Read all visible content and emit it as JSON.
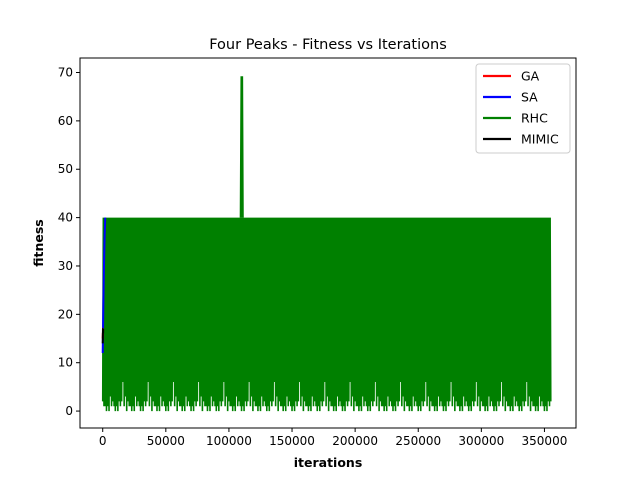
{
  "chart_data": {
    "type": "line",
    "title": "Four Peaks - Fitness vs Iterations",
    "xlabel": "iterations",
    "ylabel": "fitness",
    "xlim": [
      -18000,
      375000
    ],
    "ylim": [
      -3.5,
      73
    ],
    "xticks": [
      0,
      50000,
      100000,
      150000,
      200000,
      250000,
      300000,
      350000
    ],
    "yticks": [
      0,
      10,
      20,
      30,
      40,
      50,
      60,
      70
    ],
    "grid": false,
    "legend_position": "upper right",
    "series": [
      {
        "name": "GA",
        "color": "#ff0000",
        "x": [
          0,
          100,
          200,
          300,
          400,
          500
        ],
        "y": [
          15,
          16,
          16,
          17,
          17,
          17
        ]
      },
      {
        "name": "SA",
        "color": "#0000ff",
        "x": [
          0,
          500,
          1000,
          1500,
          2000
        ],
        "y": [
          12,
          22,
          30,
          36,
          40
        ]
      },
      {
        "name": "RHC",
        "color": "#008000",
        "x_start": 0,
        "x_end": 355000,
        "x_step": 500,
        "min": 0,
        "max": 40,
        "peak": {
          "x": 110000,
          "y": 69
        },
        "y_low": [
          2,
          0,
          1,
          3,
          1,
          2,
          0,
          4,
          1,
          2,
          0,
          1,
          3,
          2,
          1,
          0,
          2,
          5,
          1,
          3,
          0,
          2,
          1,
          4,
          0,
          1,
          2,
          3,
          1,
          0,
          2,
          1,
          6,
          0,
          1,
          2,
          3,
          1,
          0,
          2
        ]
      },
      {
        "name": "MIMIC",
        "color": "#000000",
        "x": [
          0,
          100,
          200,
          300,
          400,
          500
        ],
        "y": [
          14,
          15,
          17,
          16,
          17,
          17
        ]
      }
    ]
  }
}
